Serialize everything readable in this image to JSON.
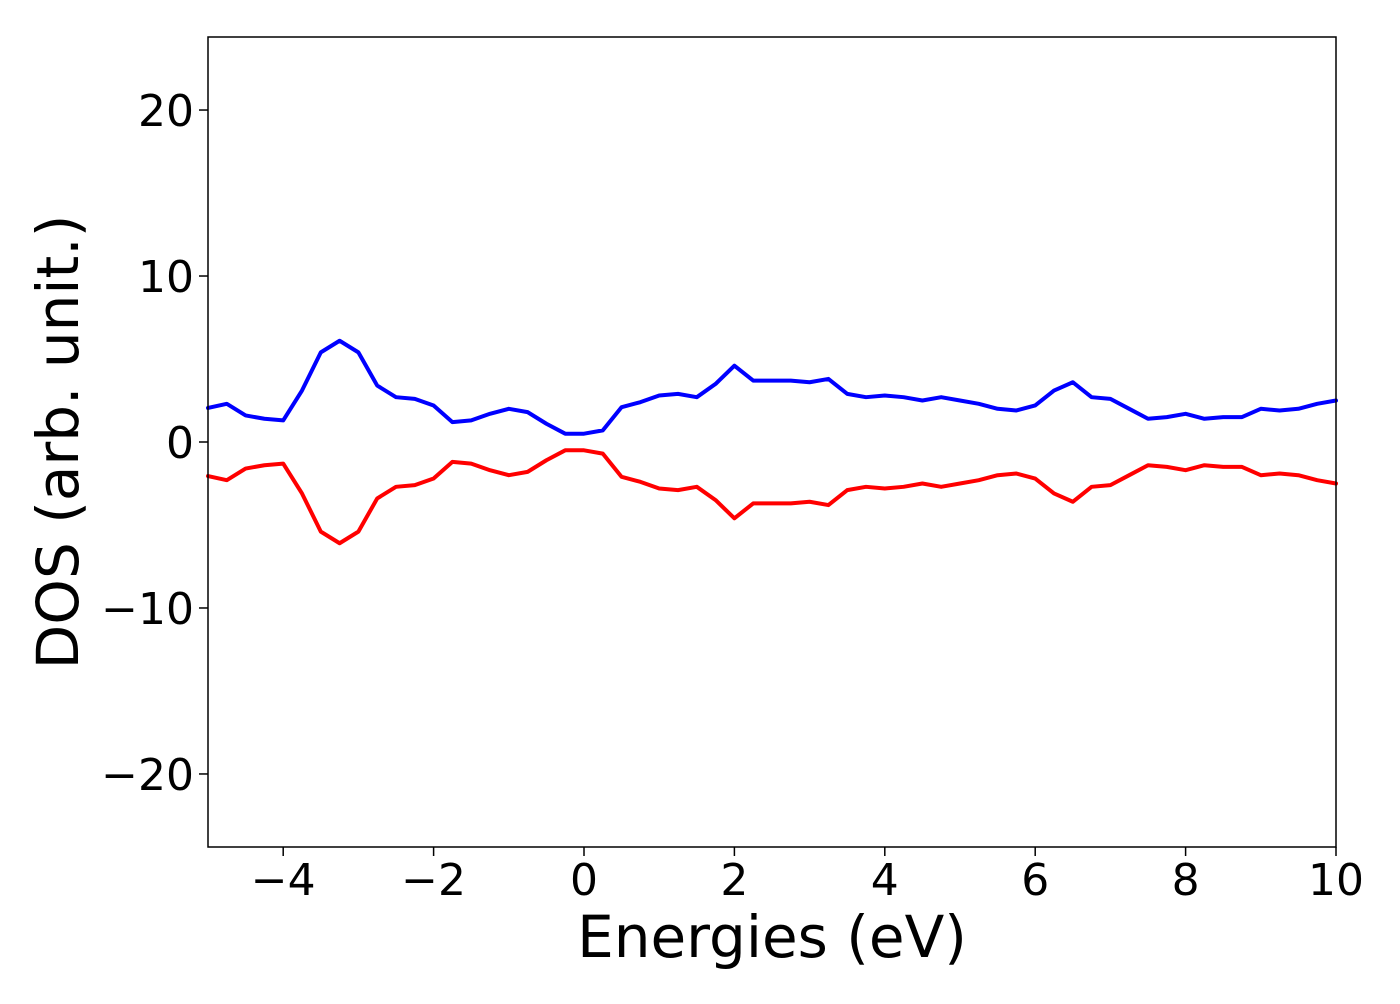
{
  "chart_data": {
    "type": "line",
    "xlabel": "Energies (eV)",
    "ylabel": "DOS (arb. unit.)",
    "x": [
      -5,
      -4.75,
      -4.5,
      -4.25,
      -4,
      -3.75,
      -3.5,
      -3.25,
      -3,
      -2.75,
      -2.5,
      -2.25,
      -2,
      -1.75,
      -1.5,
      -1.25,
      -1,
      -0.75,
      -0.5,
      -0.25,
      0,
      0.25,
      0.5,
      0.75,
      1,
      1.25,
      1.5,
      1.75,
      2,
      2.25,
      2.5,
      2.75,
      3,
      3.25,
      3.5,
      3.75,
      4,
      4.25,
      4.5,
      4.75,
      5,
      5.25,
      5.5,
      5.75,
      6,
      6.25,
      6.5,
      6.75,
      7,
      7.25,
      7.5,
      7.75,
      8,
      8.25,
      8.5,
      8.75,
      9,
      9.25,
      9.5,
      9.75,
      10
    ],
    "series": [
      {
        "color": "#0000ff",
        "values": [
          2.05,
          2.3,
          1.6,
          1.4,
          1.3,
          3.1,
          5.4,
          6.1,
          5.4,
          3.4,
          2.7,
          2.6,
          2.2,
          1.2,
          1.3,
          1.7,
          2.0,
          1.8,
          1.1,
          0.5,
          0.5,
          0.7,
          2.1,
          2.4,
          2.8,
          2.9,
          2.7,
          3.5,
          4.6,
          3.7,
          3.7,
          3.7,
          3.6,
          3.8,
          2.9,
          2.7,
          2.8,
          2.7,
          2.5,
          2.7,
          2.5,
          2.3,
          2.0,
          1.9,
          2.2,
          3.1,
          3.6,
          2.7,
          2.6,
          2.0,
          1.4,
          1.5,
          1.7,
          1.4,
          1.5,
          1.5,
          2.0,
          1.9,
          2.0,
          2.3,
          2.5
        ]
      },
      {
        "color": "#ff0000",
        "values": [
          -2.05,
          -2.3,
          -1.6,
          -1.4,
          -1.3,
          -3.1,
          -5.4,
          -6.1,
          -5.4,
          -3.4,
          -2.7,
          -2.6,
          -2.2,
          -1.2,
          -1.3,
          -1.7,
          -2.0,
          -1.8,
          -1.1,
          -0.5,
          -0.5,
          -0.7,
          -2.1,
          -2.4,
          -2.8,
          -2.9,
          -2.7,
          -3.5,
          -4.6,
          -3.7,
          -3.7,
          -3.7,
          -3.6,
          -3.8,
          -2.9,
          -2.7,
          -2.8,
          -2.7,
          -2.5,
          -2.7,
          -2.5,
          -2.3,
          -2.0,
          -1.9,
          -2.2,
          -3.1,
          -3.6,
          -2.7,
          -2.6,
          -2.0,
          -1.4,
          -1.5,
          -1.7,
          -1.4,
          -1.5,
          -1.5,
          -2.0,
          -1.9,
          -2.0,
          -2.3,
          -2.5
        ]
      }
    ],
    "xlim": [
      -5,
      10
    ],
    "xticks": [
      {
        "value": -4,
        "label": "−4"
      },
      {
        "value": -2,
        "label": "−2"
      },
      0,
      2,
      4,
      6,
      8,
      10
    ],
    "ylim": [
      -24.4,
      24.4
    ],
    "yticks": [
      {
        "value": -20,
        "label": "−20"
      },
      {
        "value": -10,
        "label": "−10"
      },
      0,
      10,
      20
    ],
    "grid": false
  }
}
